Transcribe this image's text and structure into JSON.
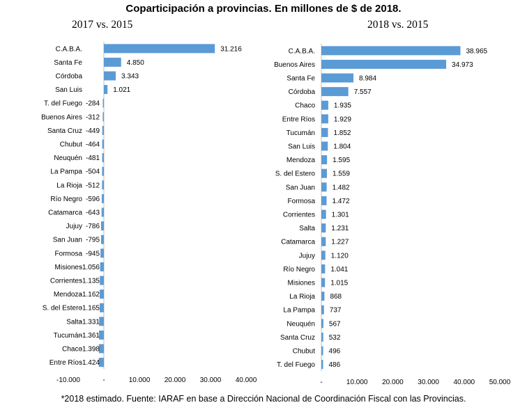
{
  "title": "Coparticipación a provincias. En millones de $ de 2018.",
  "footnote": "*2018 estimado. Fuente: IARAF en base a Dirección Nacional de Coordinación Fiscal con las Provincias.",
  "colors": {
    "bar": "#5b9bd5",
    "axis": "#bfbfbf"
  },
  "chart_data": [
    {
      "type": "bar",
      "orientation": "horizontal",
      "title": "2017 vs. 2015",
      "xlim": [
        -10000,
        40000
      ],
      "xticks": [
        "-10.000",
        "-",
        "10.000",
        "20.000",
        "30.000",
        "40.000"
      ],
      "grid": false,
      "categories": [
        "C.A.B.A.",
        "Santa Fe",
        "Córdoba",
        "San Luis",
        "T. del Fuego",
        "Buenos Aires",
        "Santa Cruz",
        "Chubut",
        "Neuquén",
        "La Pampa",
        "La Rioja",
        "Río Negro",
        "Catamarca",
        "Jujuy",
        "San Juan",
        "Formosa",
        "Misiones",
        "Corrientes",
        "Mendoza",
        "S. del Estero",
        "Salta",
        "Tucumán",
        "Chaco",
        "Entre Ríos"
      ],
      "values": [
        31216,
        4850,
        3343,
        1021,
        -284,
        -312,
        -449,
        -464,
        -481,
        -504,
        -512,
        -596,
        -643,
        -786,
        -795,
        -945,
        -1056,
        -1135,
        -1162,
        -1165,
        -1331,
        -1361,
        -1398,
        -1424
      ],
      "labels": [
        "31.216",
        "4.850",
        "3.343",
        "1.021",
        "-284",
        "-312",
        "-449",
        "-464",
        "-481",
        "-504",
        "-512",
        "-596",
        "-643",
        "-786",
        "-795",
        "-945",
        "-1.056",
        "-1.135",
        "-1.162",
        "-1.165",
        "-1.331",
        "-1.361",
        "-1.398",
        "-1.424"
      ]
    },
    {
      "type": "bar",
      "orientation": "horizontal",
      "title": "2018 vs. 2015",
      "xlim": [
        0,
        50000
      ],
      "xticks": [
        "-",
        "10.000",
        "20.000",
        "30.000",
        "40.000",
        "50.000"
      ],
      "grid": false,
      "categories": [
        "C.A.B.A.",
        "Buenos Aires",
        "Santa Fe",
        "Córdoba",
        "Chaco",
        "Entre Ríos",
        "Tucumán",
        "San Luis",
        "Mendoza",
        "S. del Estero",
        "San Juan",
        "Formosa",
        "Corrientes",
        "Salta",
        "Catamarca",
        "Jujuy",
        "Río Negro",
        "Misiones",
        "La Rioja",
        "La Pampa",
        "Neuquén",
        "Santa Cruz",
        "Chubut",
        "T. del Fuego"
      ],
      "values": [
        38965,
        34973,
        8984,
        7557,
        1935,
        1929,
        1852,
        1804,
        1595,
        1559,
        1482,
        1472,
        1301,
        1231,
        1227,
        1120,
        1041,
        1015,
        868,
        737,
        567,
        532,
        496,
        486
      ],
      "labels": [
        "38.965",
        "34.973",
        "8.984",
        "7.557",
        "1.935",
        "1.929",
        "1.852",
        "1.804",
        "1.595",
        "1.559",
        "1.482",
        "1.472",
        "1.301",
        "1.231",
        "1.227",
        "1.120",
        "1.041",
        "1.015",
        "868",
        "737",
        "567",
        "532",
        "496",
        "486"
      ]
    }
  ]
}
